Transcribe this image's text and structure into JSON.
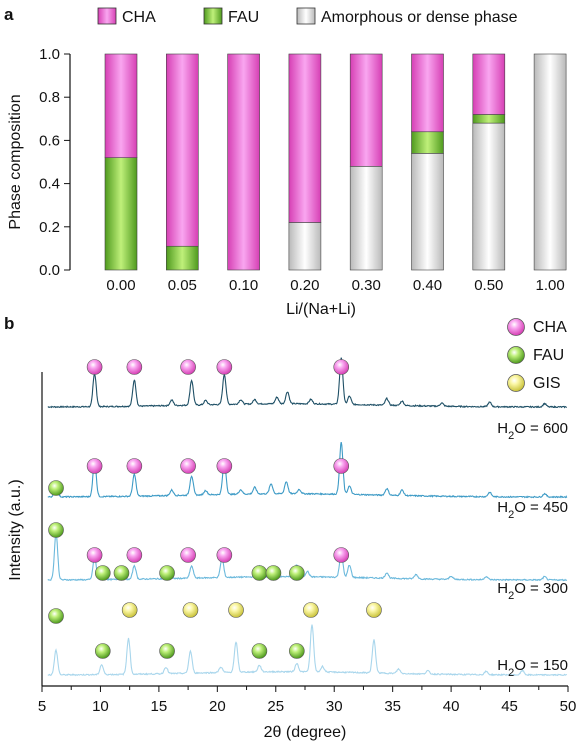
{
  "colors": {
    "CHA_light": "#f9a6f0",
    "CHA_dark": "#d63fb4",
    "FAU_light": "#bff07a",
    "FAU_dark": "#4f9a1e",
    "GIS_light": "#fbf7a6",
    "GIS_dark": "#c9c23a",
    "amorphous_light": "#ffffff",
    "amorphous_dark": "#b9b9b9",
    "trace_600": "#1f5066",
    "trace_450": "#3e9bc6",
    "trace_300": "#6cb9dc",
    "trace_150": "#a9d6ec"
  },
  "panel_a": {
    "label": "a",
    "ylabel": "Phase composition",
    "xlabel": "Li/(Na+Li)",
    "yticks": [
      "0.0",
      "0.2",
      "0.4",
      "0.6",
      "0.8",
      "1.0"
    ]
  },
  "panel_b": {
    "label": "b",
    "ylabel": "Intensity (a.u.)",
    "xlabel": "2θ (degree)",
    "xticks": [
      "5",
      "10",
      "15",
      "20",
      "25",
      "30",
      "35",
      "40",
      "45",
      "50"
    ],
    "legend": [
      {
        "key": "CHA",
        "label": "CHA"
      },
      {
        "key": "FAU",
        "label": "FAU"
      },
      {
        "key": "GIS",
        "label": "GIS"
      }
    ]
  },
  "chart_data": [
    {
      "type": "bar",
      "stacked": true,
      "panel": "a",
      "categories": [
        "0.00",
        "0.05",
        "0.10",
        "0.20",
        "0.30",
        "0.40",
        "0.50",
        "1.00"
      ],
      "xlabel": "Li/(Na+Li)",
      "ylabel": "Phase composition",
      "ylim": [
        0,
        1.0
      ],
      "legend_position": "top",
      "series": [
        {
          "name": "Amorphous or dense phase",
          "key": "amorphous",
          "values": [
            0,
            0,
            0,
            0.22,
            0.48,
            0.54,
            0.68,
            1.0
          ]
        },
        {
          "name": "FAU",
          "key": "FAU",
          "values": [
            0.52,
            0.11,
            0,
            0,
            0,
            0.1,
            0.04,
            0
          ]
        },
        {
          "name": "CHA",
          "key": "CHA",
          "values": [
            0.48,
            0.89,
            1.0,
            0.78,
            0.52,
            0.36,
            0.28,
            0
          ]
        }
      ]
    },
    {
      "type": "line",
      "panel": "b",
      "xlabel": "2θ (degree)",
      "ylabel": "Intensity (a.u.)",
      "xlim": [
        5,
        50
      ],
      "series": [
        {
          "name": "600",
          "label_pre": "H",
          "label_sub": "2",
          "label_post": "O = 600",
          "color_key": "trace_600",
          "peaks": [
            [
              9.5,
              60
            ],
            [
              12.9,
              48
            ],
            [
              16.1,
              10
            ],
            [
              17.8,
              45
            ],
            [
              19.0,
              8
            ],
            [
              20.6,
              55
            ],
            [
              22.0,
              8
            ],
            [
              23.2,
              8
            ],
            [
              25.1,
              12
            ],
            [
              26.0,
              22
            ],
            [
              28.0,
              8
            ],
            [
              30.6,
              85
            ],
            [
              31.3,
              15
            ],
            [
              34.5,
              12
            ],
            [
              35.8,
              8
            ],
            [
              39.2,
              6
            ],
            [
              43.3,
              8
            ],
            [
              48.0,
              6
            ]
          ],
          "markers": [
            {
              "phase": "CHA",
              "x": 9.5
            },
            {
              "phase": "CHA",
              "x": 12.9
            },
            {
              "phase": "CHA",
              "x": 17.5
            },
            {
              "phase": "CHA",
              "x": 20.6
            },
            {
              "phase": "CHA",
              "x": 30.6
            }
          ]
        },
        {
          "name": "450",
          "label_pre": "H",
          "label_sub": "2",
          "label_post": "O = 450",
          "color_key": "trace_450",
          "peaks": [
            [
              6.2,
              25
            ],
            [
              9.5,
              65
            ],
            [
              12.9,
              40
            ],
            [
              16.1,
              10
            ],
            [
              17.8,
              35
            ],
            [
              19.0,
              8
            ],
            [
              20.6,
              62
            ],
            [
              22.0,
              8
            ],
            [
              23.2,
              12
            ],
            [
              24.6,
              18
            ],
            [
              25.9,
              22
            ],
            [
              27.0,
              8
            ],
            [
              30.6,
              95
            ],
            [
              31.3,
              15
            ],
            [
              34.5,
              12
            ],
            [
              35.8,
              10
            ],
            [
              43.3,
              8
            ],
            [
              48.0,
              6
            ]
          ],
          "markers": [
            {
              "phase": "FAU",
              "x": 6.2
            },
            {
              "phase": "CHA",
              "x": 9.5
            },
            {
              "phase": "CHA",
              "x": 12.9
            },
            {
              "phase": "CHA",
              "x": 17.5
            },
            {
              "phase": "CHA",
              "x": 20.6
            },
            {
              "phase": "CHA",
              "x": 30.6
            }
          ]
        },
        {
          "name": "300",
          "label_pre": "H",
          "label_sub": "2",
          "label_post": "O = 300",
          "color_key": "trace_300",
          "peaks": [
            [
              6.2,
              85
            ],
            [
              9.5,
              40
            ],
            [
              10.2,
              18
            ],
            [
              11.8,
              15
            ],
            [
              12.9,
              25
            ],
            [
              15.7,
              18
            ],
            [
              17.8,
              22
            ],
            [
              20.4,
              35
            ],
            [
              23.6,
              20
            ],
            [
              24.8,
              16
            ],
            [
              26.8,
              22
            ],
            [
              27.7,
              10
            ],
            [
              30.6,
              45
            ],
            [
              31.3,
              22
            ],
            [
              34.5,
              10
            ],
            [
              37.0,
              8
            ],
            [
              40.0,
              6
            ],
            [
              43.0,
              6
            ],
            [
              48.0,
              6
            ]
          ],
          "markers": [
            {
              "phase": "FAU",
              "x": 6.2
            },
            {
              "phase": "CHA",
              "x": 9.5
            },
            {
              "phase": "FAU",
              "x": 10.2
            },
            {
              "phase": "FAU",
              "x": 11.8
            },
            {
              "phase": "CHA",
              "x": 12.9
            },
            {
              "phase": "FAU",
              "x": 15.7
            },
            {
              "phase": "CHA",
              "x": 17.5
            },
            {
              "phase": "CHA",
              "x": 20.6
            },
            {
              "phase": "FAU",
              "x": 23.6
            },
            {
              "phase": "FAU",
              "x": 24.8
            },
            {
              "phase": "FAU",
              "x": 26.8
            },
            {
              "phase": "CHA",
              "x": 30.6
            }
          ]
        },
        {
          "name": "150",
          "label_pre": "H",
          "label_sub": "2",
          "label_post": "O = 150",
          "color_key": "trace_150",
          "peaks": [
            [
              6.2,
              45
            ],
            [
              10.1,
              18
            ],
            [
              12.4,
              65
            ],
            [
              15.6,
              12
            ],
            [
              17.7,
              40
            ],
            [
              20.3,
              10
            ],
            [
              21.6,
              55
            ],
            [
              23.6,
              12
            ],
            [
              26.8,
              15
            ],
            [
              28.1,
              85
            ],
            [
              29.0,
              10
            ],
            [
              33.4,
              60
            ],
            [
              35.5,
              8
            ],
            [
              38.0,
              6
            ],
            [
              43.0,
              6
            ],
            [
              46.1,
              8
            ]
          ],
          "markers": [
            {
              "phase": "FAU",
              "x": 6.2
            },
            {
              "phase": "FAU",
              "x": 10.2
            },
            {
              "phase": "GIS",
              "x": 12.5
            },
            {
              "phase": "FAU",
              "x": 15.7
            },
            {
              "phase": "GIS",
              "x": 17.7
            },
            {
              "phase": "GIS",
              "x": 21.6
            },
            {
              "phase": "FAU",
              "x": 23.6
            },
            {
              "phase": "FAU",
              "x": 26.8
            },
            {
              "phase": "GIS",
              "x": 28.0
            },
            {
              "phase": "GIS",
              "x": 33.4
            }
          ]
        }
      ]
    }
  ]
}
